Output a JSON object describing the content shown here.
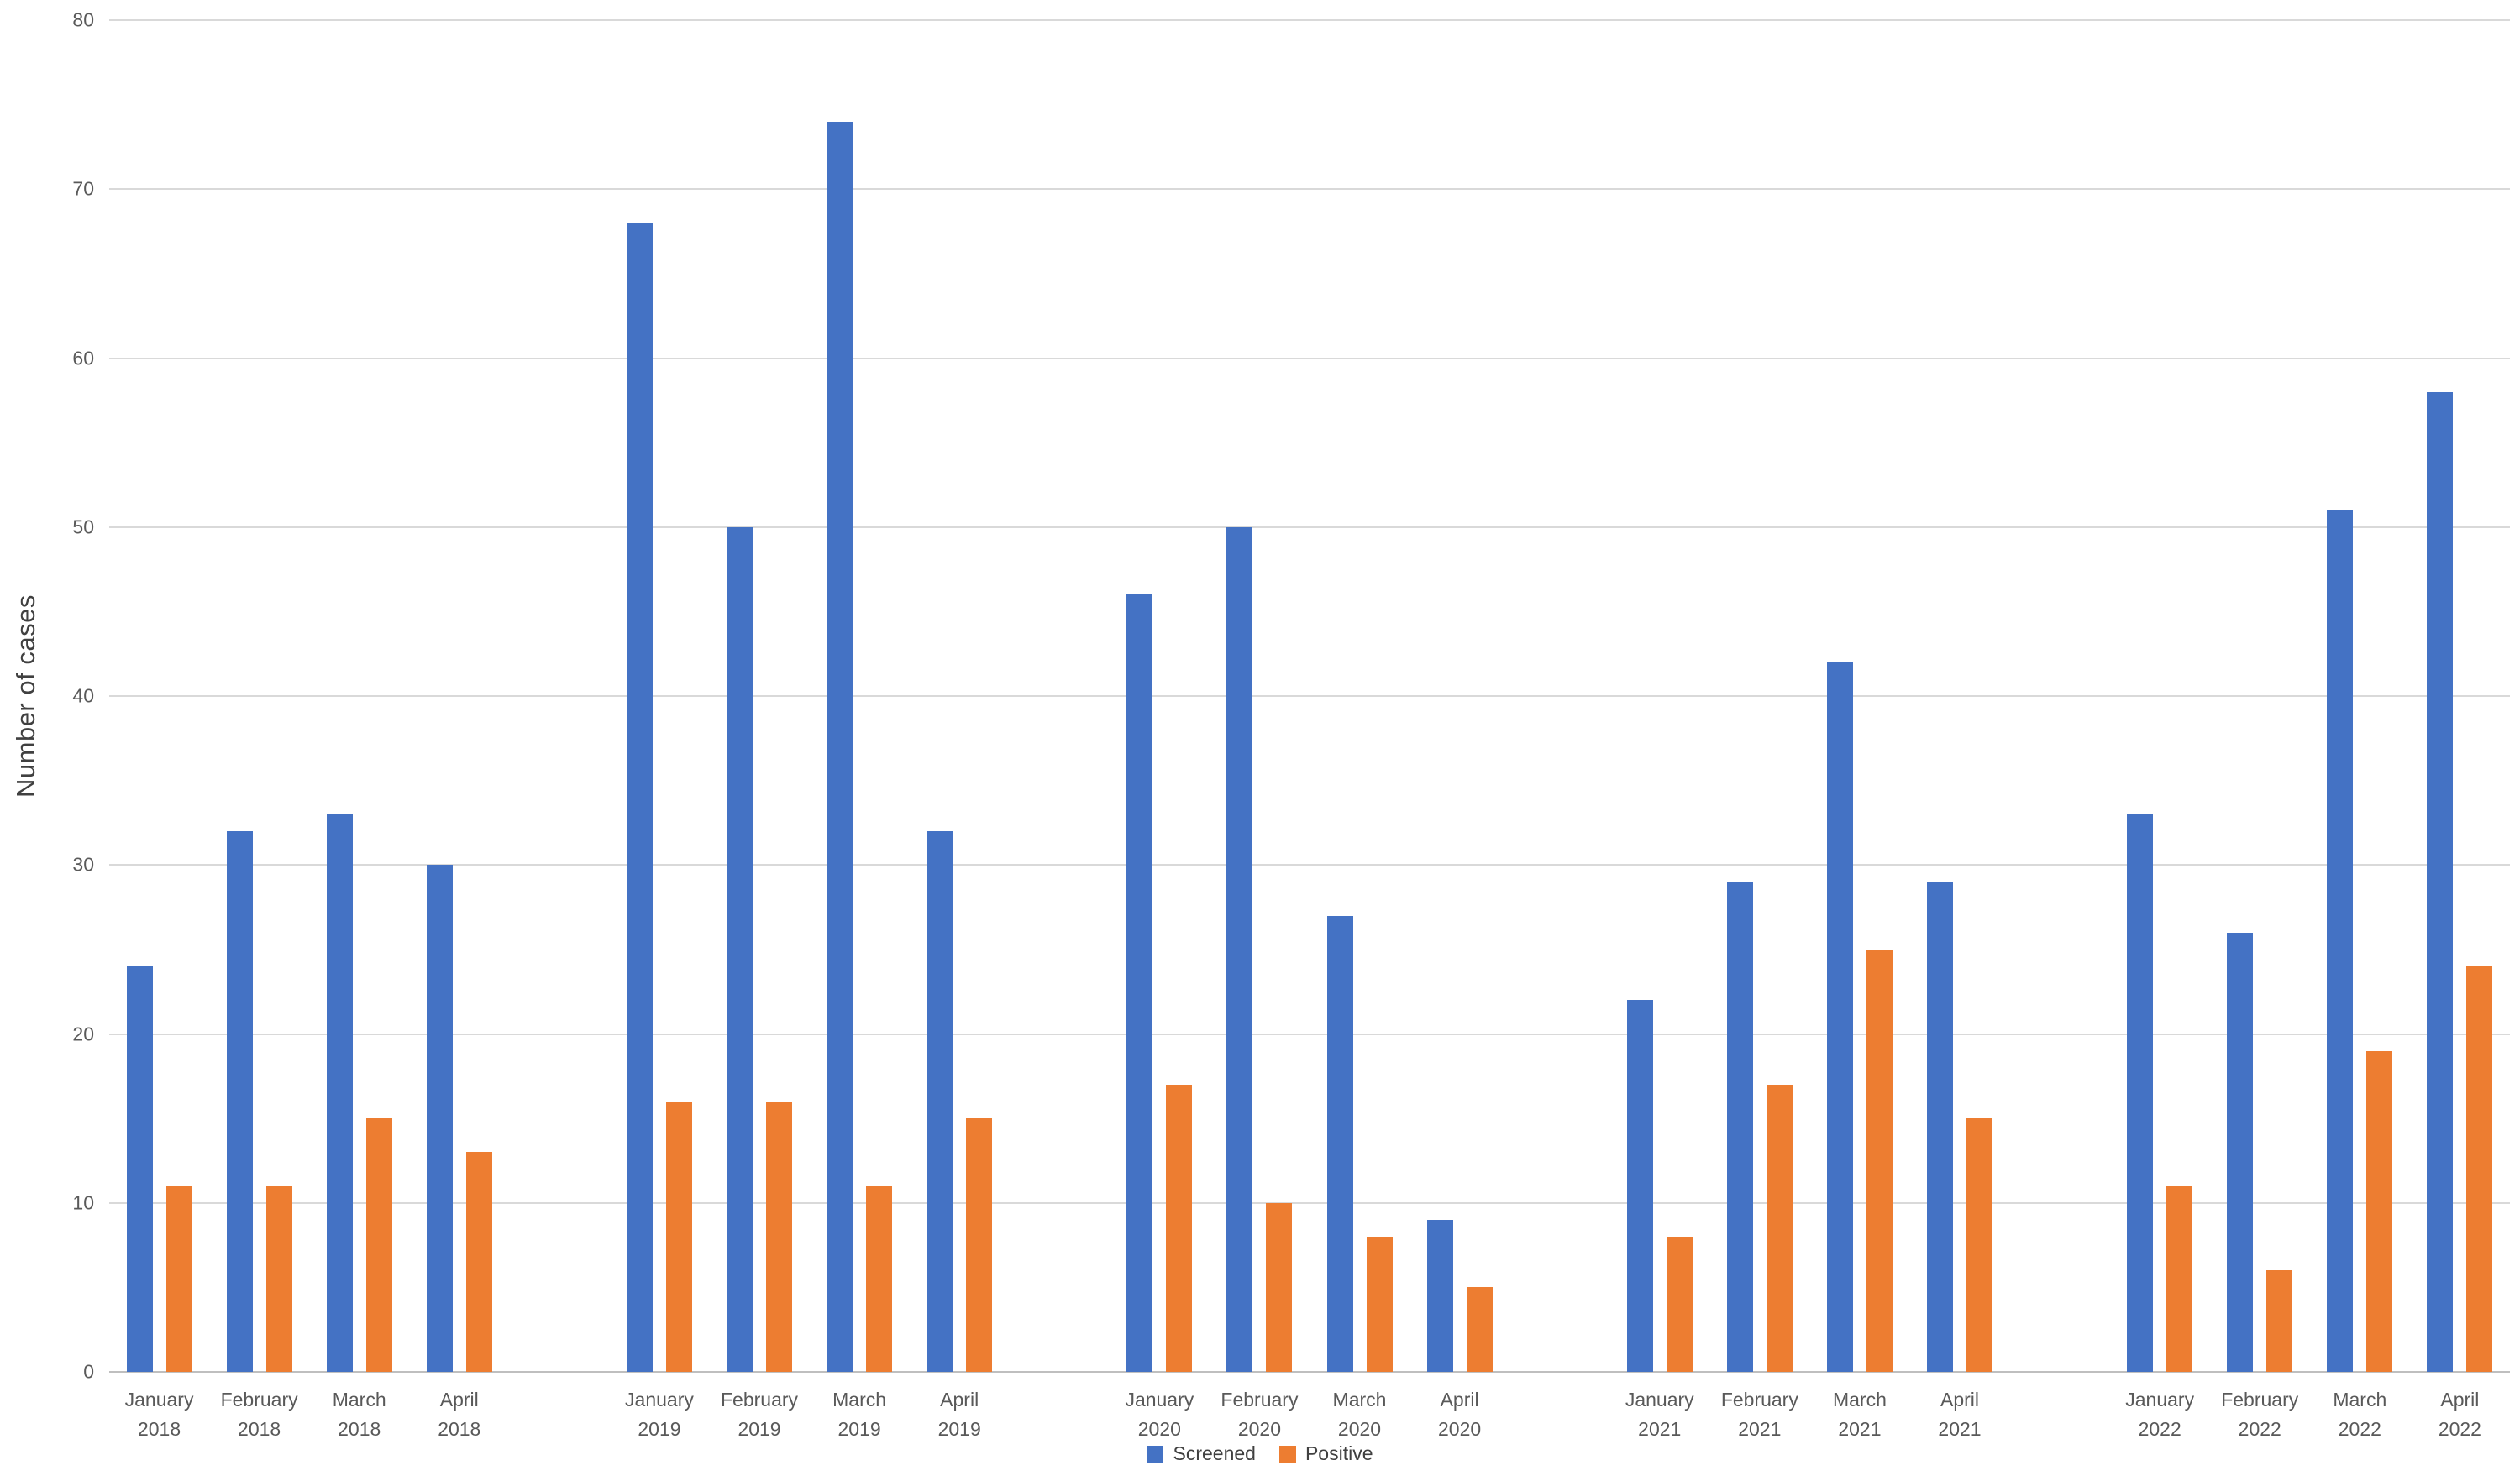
{
  "chart_data": {
    "type": "bar",
    "title": "",
    "xlabel": "",
    "ylabel": "Number of cases",
    "ylim": [
      0,
      80
    ],
    "yticks": [
      0,
      10,
      20,
      30,
      40,
      50,
      60,
      70,
      80
    ],
    "grid": true,
    "legend_position": "bottom",
    "group_size": 4,
    "categories": [
      {
        "month": "January",
        "year": "2018"
      },
      {
        "month": "February",
        "year": "2018"
      },
      {
        "month": "March",
        "year": "2018"
      },
      {
        "month": "April",
        "year": "2018"
      },
      {
        "month": "January",
        "year": "2019"
      },
      {
        "month": "February",
        "year": "2019"
      },
      {
        "month": "March",
        "year": "2019"
      },
      {
        "month": "April",
        "year": "2019"
      },
      {
        "month": "January",
        "year": "2020"
      },
      {
        "month": "February",
        "year": "2020"
      },
      {
        "month": "March",
        "year": "2020"
      },
      {
        "month": "April",
        "year": "2020"
      },
      {
        "month": "January",
        "year": "2021"
      },
      {
        "month": "February",
        "year": "2021"
      },
      {
        "month": "March",
        "year": "2021"
      },
      {
        "month": "April",
        "year": "2021"
      },
      {
        "month": "January",
        "year": "2022"
      },
      {
        "month": "February",
        "year": "2022"
      },
      {
        "month": "March",
        "year": "2022"
      },
      {
        "month": "April",
        "year": "2022"
      }
    ],
    "series": [
      {
        "name": "Screened",
        "color": "#4472C4",
        "values": [
          24,
          32,
          33,
          30,
          68,
          50,
          74,
          32,
          46,
          50,
          27,
          9,
          22,
          29,
          42,
          29,
          33,
          26,
          51,
          58
        ]
      },
      {
        "name": "Positive",
        "color": "#ED7D31",
        "values": [
          11,
          11,
          15,
          13,
          16,
          16,
          11,
          15,
          17,
          10,
          8,
          5,
          8,
          17,
          25,
          15,
          11,
          6,
          19,
          24
        ]
      }
    ]
  }
}
